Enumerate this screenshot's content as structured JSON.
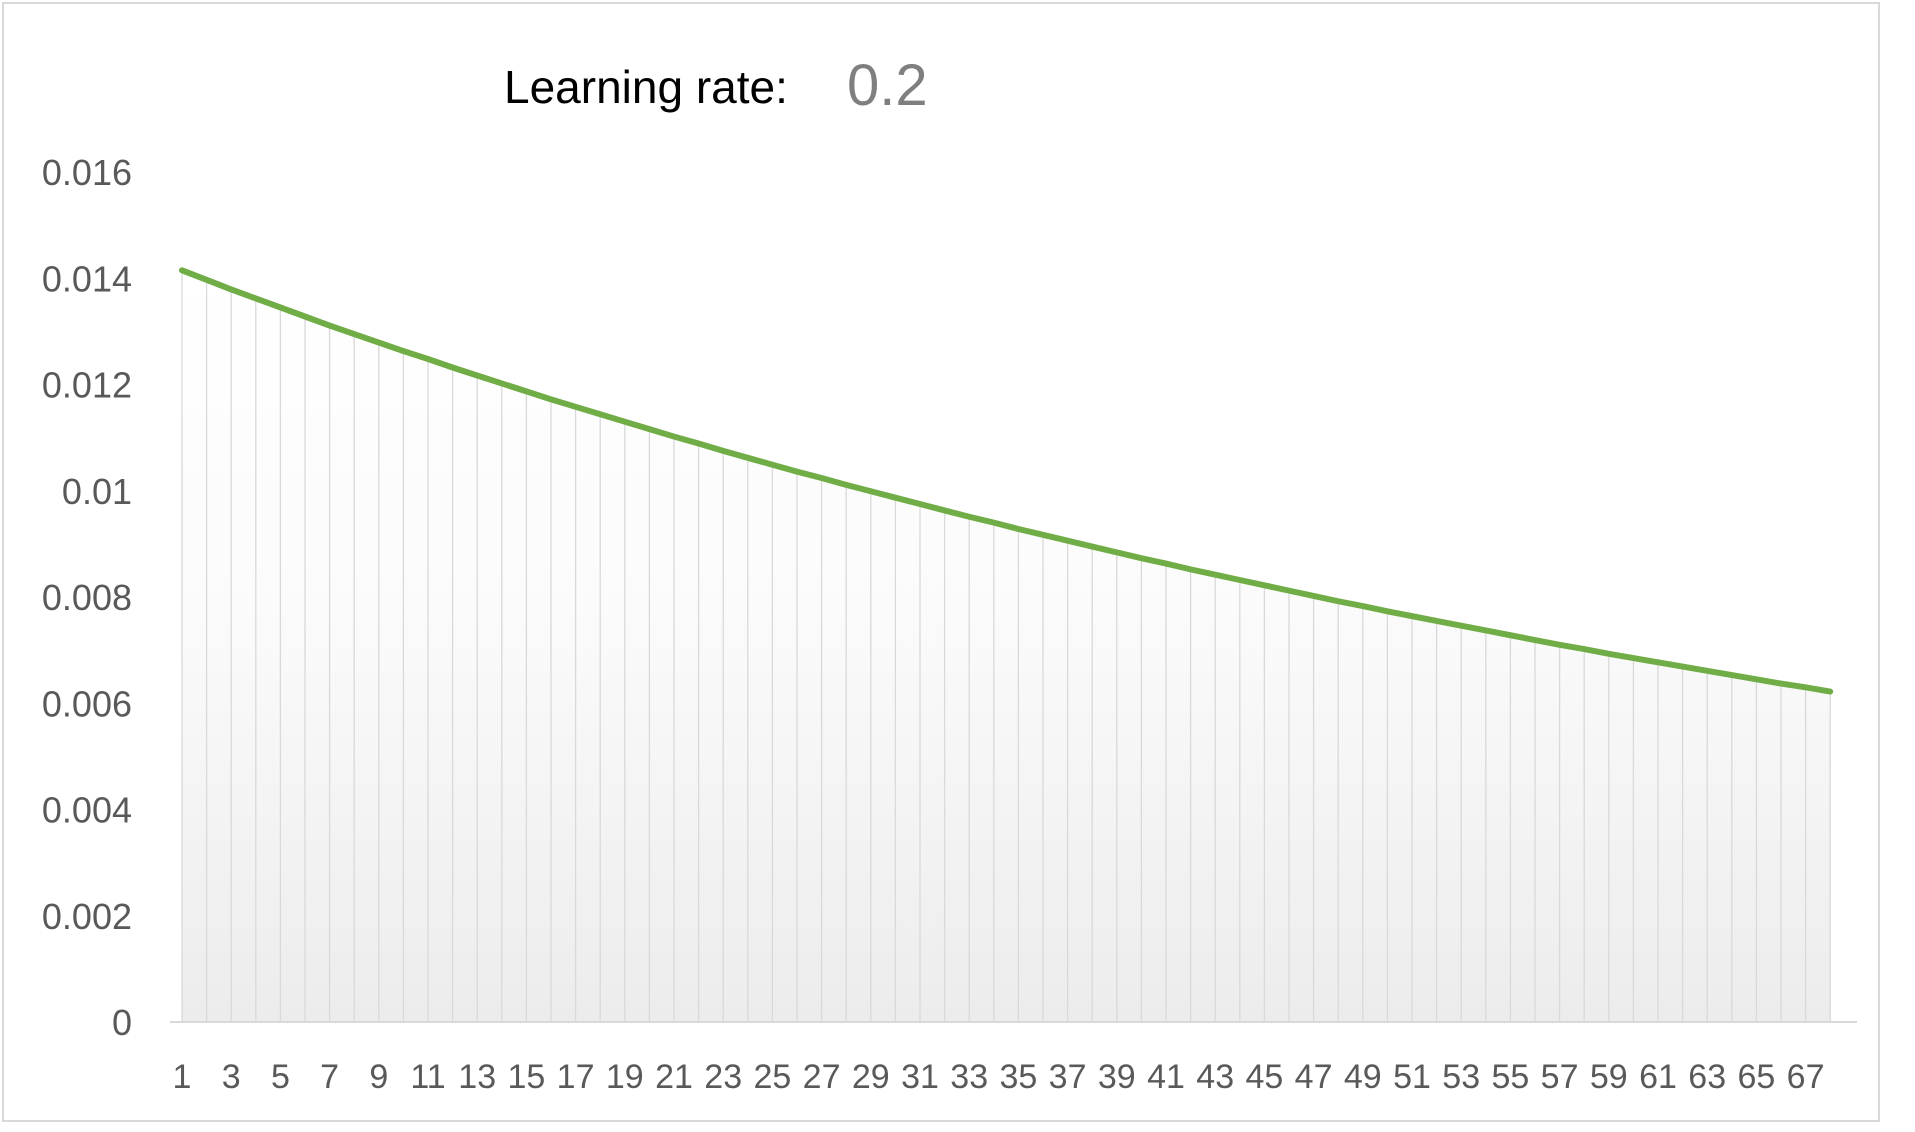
{
  "header": {
    "label": "Learning rate:",
    "value": "0.2"
  },
  "chart_data": {
    "type": "area",
    "title": "",
    "xlabel": "",
    "ylabel": "",
    "grid": "vertical drop lines",
    "legend": "none",
    "colors": {
      "line": "#70ad47",
      "fill_top": "#ffffff",
      "fill_bottom": "#ececec",
      "droplines": "#d9d9d9"
    },
    "xlim": [
      1,
      68
    ],
    "ylim": [
      0,
      0.016
    ],
    "y_ticks": [
      "0",
      "0.002",
      "0.004",
      "0.006",
      "0.008",
      "0.01",
      "0.012",
      "0.014",
      "0.016"
    ],
    "x_tick_labels": [
      "1",
      "3",
      "5",
      "7",
      "9",
      "11",
      "13",
      "15",
      "17",
      "19",
      "21",
      "23",
      "25",
      "27",
      "29",
      "31",
      "33",
      "35",
      "37",
      "39",
      "41",
      "43",
      "45",
      "47",
      "49",
      "51",
      "53",
      "55",
      "57",
      "59",
      "61",
      "63",
      "65",
      "67"
    ],
    "series": [
      {
        "values": [
          0.01415,
          0.01397,
          0.01379,
          0.01362,
          0.01345,
          0.01328,
          0.01311,
          0.01295,
          0.01279,
          0.01263,
          0.01248,
          0.01232,
          0.01217,
          0.01202,
          0.01187,
          0.01172,
          0.01158,
          0.01144,
          0.0113,
          0.01116,
          0.01102,
          0.01089,
          0.01075,
          0.01062,
          0.01049,
          0.01036,
          0.01024,
          0.01011,
          0.00999,
          0.00987,
          0.00975,
          0.00963,
          0.00951,
          0.0094,
          0.00928,
          0.00917,
          0.00906,
          0.00895,
          0.00884,
          0.00873,
          0.00863,
          0.00852,
          0.00842,
          0.00832,
          0.00822,
          0.00812,
          0.00802,
          0.00792,
          0.00783,
          0.00773,
          0.00764,
          0.00755,
          0.00746,
          0.00737,
          0.00728,
          0.00719,
          0.0071,
          0.00702,
          0.00693,
          0.00685,
          0.00677,
          0.00669,
          0.00661,
          0.00653,
          0.00645,
          0.00637,
          0.0063,
          0.00622
        ]
      }
    ]
  }
}
